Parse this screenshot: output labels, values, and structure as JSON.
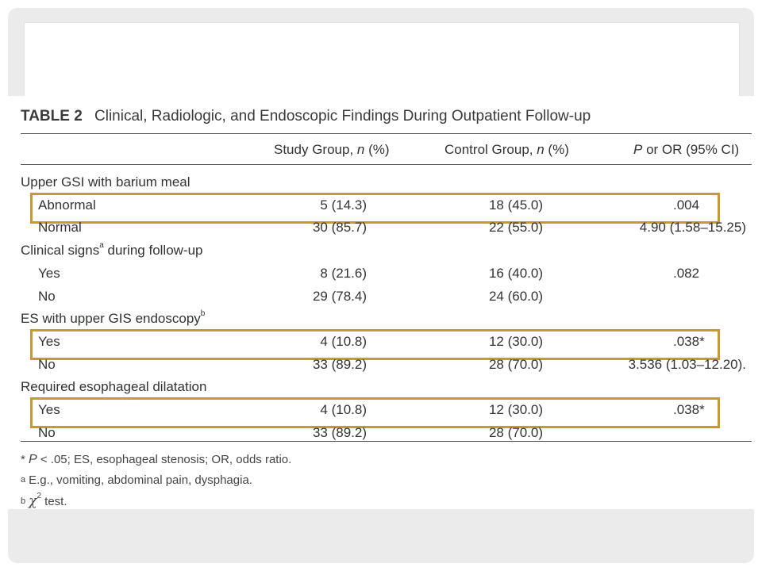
{
  "table": {
    "tag": "TABLE 2",
    "caption": "Clinical, Radiologic, and Endoscopic Findings During Outpatient Follow-up",
    "headers": {
      "study_pre": "Study Group, ",
      "study_n": "n",
      "study_post": " (%)",
      "control_pre": "Control Group, ",
      "control_n": "n",
      "control_post": " (%)",
      "p_p": "P",
      "p_post": " or OR (95% CI)"
    },
    "sections": [
      {
        "label": "Upper GSI with barium meal",
        "label_sup": "",
        "rows": [
          {
            "label": "Abnormal",
            "study": "5 (14.3)",
            "control": "18 (45.0)",
            "p": ".004",
            "highlighted": true
          },
          {
            "label": "Normal",
            "study": "30 (85.7)",
            "control": "22 (55.0)",
            "p": "4.90 (1.58–15.25)",
            "highlighted": false
          }
        ]
      },
      {
        "label": "Clinical signs",
        "label_sup": "a",
        "label_after": " during follow-up",
        "rows": [
          {
            "label": "Yes",
            "study": "8 (21.6)",
            "control": "16 (40.0)",
            "p": ".082",
            "highlighted": false
          },
          {
            "label": "No",
            "study": "29 (78.4)",
            "control": "24 (60.0)",
            "p": "",
            "highlighted": false
          }
        ]
      },
      {
        "label": "ES with upper GIS endoscopy",
        "label_sup": "b",
        "rows": [
          {
            "label": "Yes",
            "study": "4 (10.8)",
            "control": "12 (30.0)",
            "p": ".038*",
            "highlighted": true
          },
          {
            "label": "No",
            "study": "33 (89.2)",
            "control": "28 (70.0)",
            "p": "3.536 (1.03–12.20).",
            "highlighted": false
          }
        ]
      },
      {
        "label": "Required esophageal dilatation",
        "label_sup": "",
        "rows": [
          {
            "label": "Yes",
            "study": "4 (10.8)",
            "control": "12 (30.0)",
            "p": ".038*",
            "highlighted": true
          },
          {
            "label": "No",
            "study": "33 (89.2)",
            "control": "28 (70.0)",
            "p": "",
            "highlighted": false
          }
        ]
      }
    ],
    "footnotes": {
      "star_mark": "*",
      "star_p": "P",
      "star_rest": "< .05; ES, esophageal stenosis; OR, odds ratio.",
      "a_mark": "a",
      "a_text": "E.g., vomiting, abdominal pain, dysphagia.",
      "b_mark": "b",
      "b_chi": "χ",
      "b_sq": "2",
      "b_text": " test."
    }
  },
  "colors": {
    "highlight": "#c89a2e",
    "frame": "#ebebeb"
  }
}
